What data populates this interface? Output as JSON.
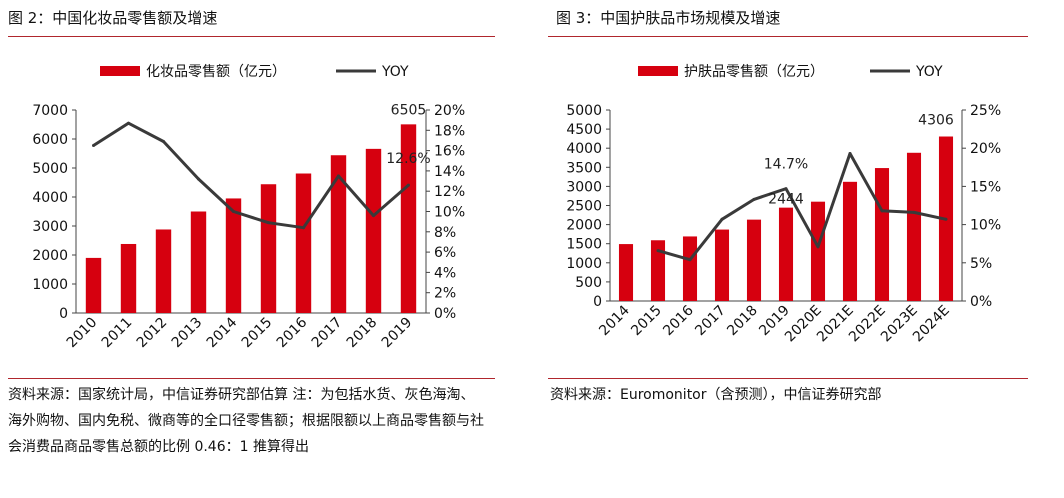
{
  "colors": {
    "bar": "#d6000f",
    "line": "#3a3a3a",
    "rule": "#b0262d"
  },
  "panel_left": {
    "title": "图 2：中国化妆品零售额及增速",
    "source": "资料来源：国家统计局，中信证券研究部估算  注：为包括水货、灰色海淘、海外购物、国内免税、微商等的全口径零售额；根据限额以上商品零售额与社会消费品商品零售总额的比例 0.46：1 推算得出"
  },
  "panel_right": {
    "title": "图 3：中国护肤品市场规模及增速",
    "source": "资料来源：Euromonitor（含预测），中信证券研究部"
  },
  "chart_data": [
    {
      "type": "bar",
      "categories": [
        "2010",
        "2011",
        "2012",
        "2013",
        "2014",
        "2015",
        "2016",
        "2017",
        "2018",
        "2019"
      ],
      "series": [
        {
          "name": "化妆品零售额（亿元）",
          "type": "bar",
          "axis": "left",
          "values": [
            1900,
            2380,
            2880,
            3500,
            3950,
            4440,
            4810,
            5440,
            5660,
            6505
          ]
        },
        {
          "name": "YOY",
          "type": "line",
          "axis": "right",
          "values": [
            16.5,
            18.7,
            16.9,
            13.2,
            10.0,
            8.9,
            8.4,
            13.5,
            9.6,
            12.6
          ]
        }
      ],
      "y_left": {
        "ylim": [
          0,
          7000
        ],
        "ticks": [
          "0",
          "1000",
          "2000",
          "3000",
          "4000",
          "5000",
          "6000",
          "7000"
        ]
      },
      "y_right": {
        "ylim": [
          0,
          20
        ],
        "ticks": [
          "0%",
          "2%",
          "4%",
          "6%",
          "8%",
          "10%",
          "12%",
          "14%",
          "16%",
          "18%",
          "20%"
        ]
      },
      "labels": {
        "bar_last": "6505",
        "line_last": "12.6%"
      },
      "legend_position": "top",
      "grid": false
    },
    {
      "type": "bar",
      "categories": [
        "2014",
        "2015",
        "2016",
        "2017",
        "2018",
        "2019",
        "2020E",
        "2021E",
        "2022E",
        "2023E",
        "2024E"
      ],
      "series": [
        {
          "name": "护肤品零售额（亿元）",
          "type": "bar",
          "axis": "left",
          "values": [
            1490,
            1590,
            1690,
            1870,
            2130,
            2444,
            2600,
            3120,
            3480,
            3880,
            4306
          ]
        },
        {
          "name": "YOY",
          "type": "line",
          "axis": "right",
          "values": [
            null,
            6.6,
            5.4,
            10.7,
            13.3,
            14.7,
            7.1,
            19.3,
            11.8,
            11.6,
            10.7
          ]
        }
      ],
      "y_left": {
        "ylim": [
          0,
          5000
        ],
        "ticks": [
          "0",
          "500",
          "1000",
          "1500",
          "2000",
          "2500",
          "3000",
          "3500",
          "4000",
          "4500",
          "5000"
        ]
      },
      "y_right": {
        "ylim": [
          0,
          25
        ],
        "ticks": [
          "0%",
          "5%",
          "10%",
          "15%",
          "20%",
          "25%"
        ]
      },
      "labels": {
        "bar_2019": "2444",
        "line_2019": "14.7%",
        "bar_last": "4306"
      },
      "legend_position": "top",
      "grid": false
    }
  ]
}
